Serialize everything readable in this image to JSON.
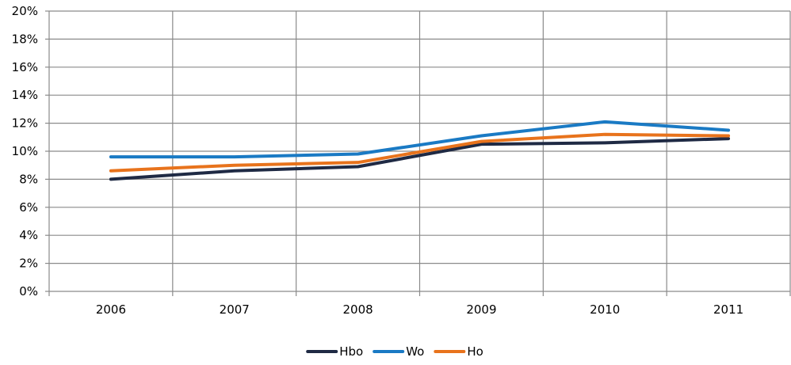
{
  "chart_data": {
    "type": "line",
    "categories": [
      "2006",
      "2007",
      "2008",
      "2009",
      "2010",
      "2011"
    ],
    "yticks": [
      "0%",
      "2%",
      "4%",
      "6%",
      "8%",
      "10%",
      "12%",
      "14%",
      "16%",
      "18%",
      "20%"
    ],
    "ylim": [
      0,
      20
    ],
    "grid": true,
    "legend_position": "bottom",
    "series": [
      {
        "name": "Hbo",
        "color": "#1f2a44",
        "values": [
          8.0,
          8.6,
          8.9,
          10.5,
          10.6,
          10.9
        ]
      },
      {
        "name": "Wo",
        "color": "#1a7ac4",
        "values": [
          9.6,
          9.6,
          9.8,
          11.1,
          12.1,
          11.5
        ]
      },
      {
        "name": "Ho",
        "color": "#e8731c",
        "values": [
          8.6,
          9.0,
          9.2,
          10.7,
          11.2,
          11.1
        ]
      }
    ]
  }
}
